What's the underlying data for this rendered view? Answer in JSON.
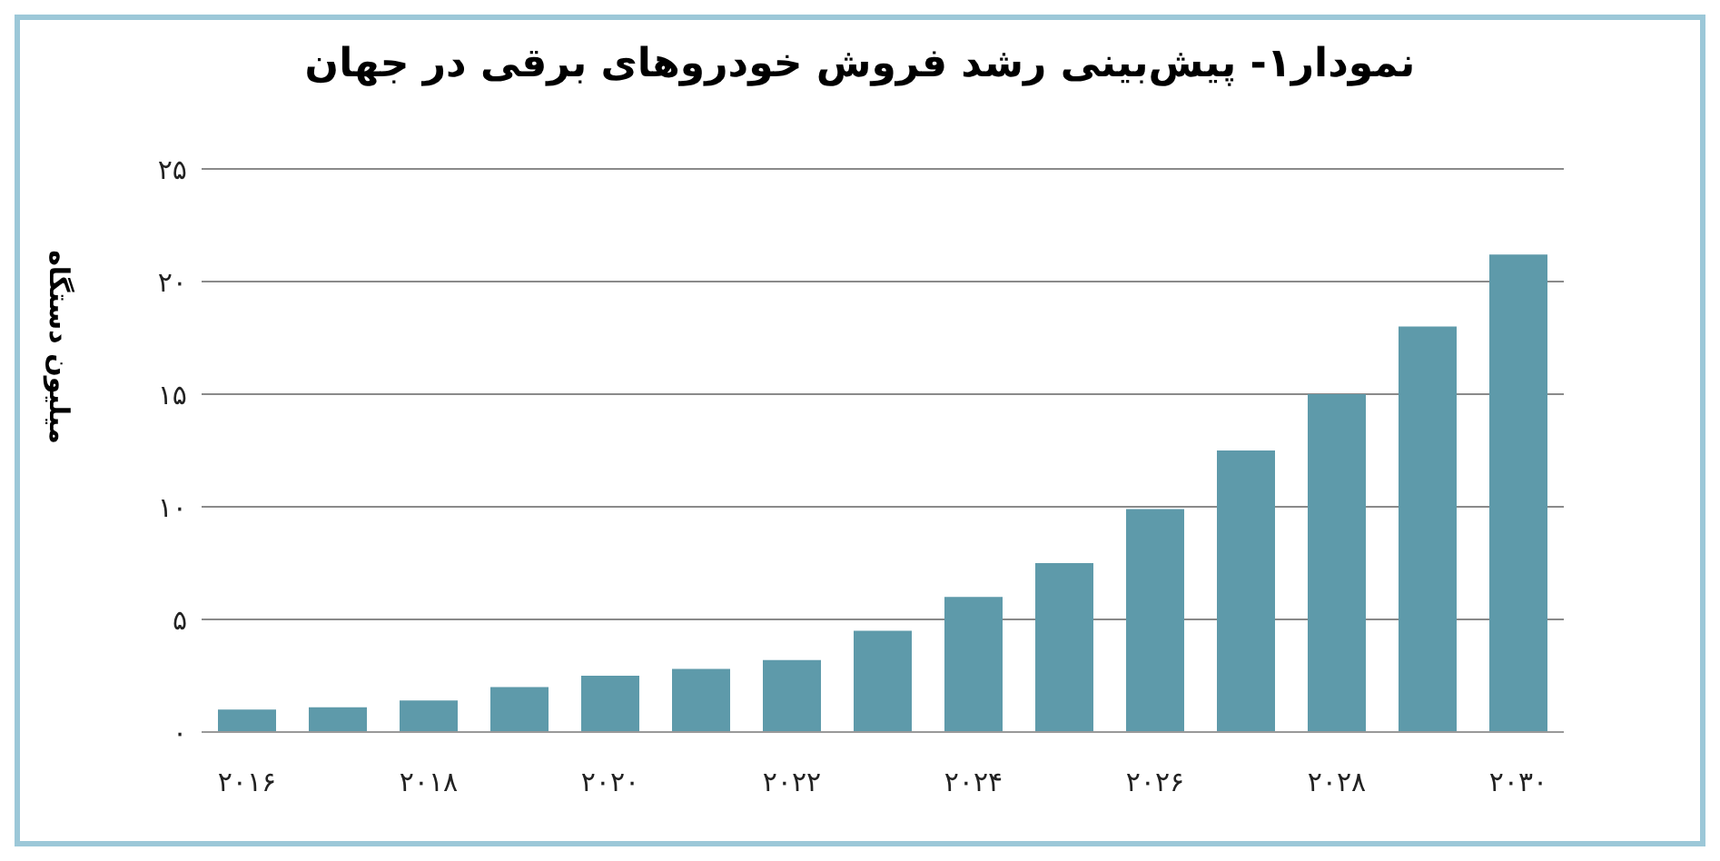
{
  "chart_data": {
    "type": "bar",
    "title": "نمودار۱- پیش‌بینی رشد فروش خودروهای برقی در جهان",
    "ylabel": "میلیون دستگاه",
    "categories": [
      "۲۰۱۶",
      null,
      "۲۰۱۸",
      null,
      "۲۰۲۰",
      null,
      "۲۰۲۲",
      null,
      "۲۰۲۴",
      null,
      "۲۰۲۶",
      null,
      "۲۰۲۸",
      null,
      "۲۰۳۰"
    ],
    "values": [
      1.0,
      1.1,
      1.4,
      2.0,
      2.5,
      2.8,
      3.2,
      4.5,
      6.0,
      7.5,
      9.9,
      12.5,
      15.0,
      18.0,
      21.2
    ],
    "color": "#5e9aaa",
    "ylim": [
      0,
      25
    ],
    "yticks": [
      {
        "value": 0,
        "label": "۰"
      },
      {
        "value": 5,
        "label": "۵"
      },
      {
        "value": 10,
        "label": "۱۰"
      },
      {
        "value": 15,
        "label": "۱۵"
      },
      {
        "value": 20,
        "label": "۲۰"
      },
      {
        "value": 25,
        "label": "۲۵"
      }
    ],
    "grid": "y"
  }
}
